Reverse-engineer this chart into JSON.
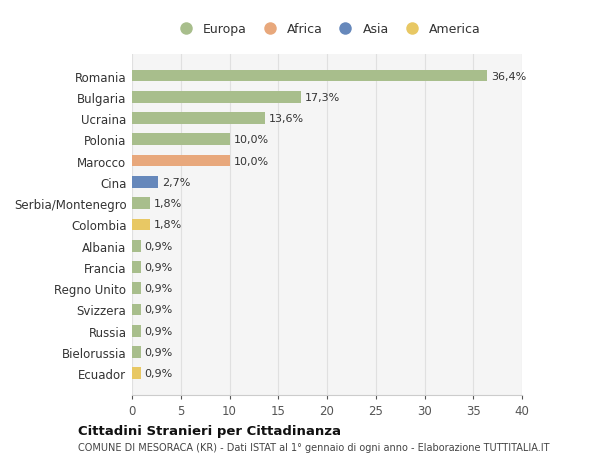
{
  "countries": [
    "Romania",
    "Bulgaria",
    "Ucraina",
    "Polonia",
    "Marocco",
    "Cina",
    "Serbia/Montenegro",
    "Colombia",
    "Albania",
    "Francia",
    "Regno Unito",
    "Svizzera",
    "Russia",
    "Bielorussia",
    "Ecuador"
  ],
  "values": [
    36.4,
    17.3,
    13.6,
    10.0,
    10.0,
    2.7,
    1.8,
    1.8,
    0.9,
    0.9,
    0.9,
    0.9,
    0.9,
    0.9,
    0.9
  ],
  "labels": [
    "36,4%",
    "17,3%",
    "13,6%",
    "10,0%",
    "10,0%",
    "2,7%",
    "1,8%",
    "1,8%",
    "0,9%",
    "0,9%",
    "0,9%",
    "0,9%",
    "0,9%",
    "0,9%",
    "0,9%"
  ],
  "continents": [
    "Europa",
    "Europa",
    "Europa",
    "Europa",
    "Africa",
    "Asia",
    "Europa",
    "America",
    "Europa",
    "Europa",
    "Europa",
    "Europa",
    "Europa",
    "Europa",
    "America"
  ],
  "colors": {
    "Europa": "#a8be8c",
    "Africa": "#e8a87c",
    "Asia": "#6688bb",
    "America": "#e8c864"
  },
  "legend_order": [
    "Europa",
    "Africa",
    "Asia",
    "America"
  ],
  "xlim": [
    0,
    40
  ],
  "xticks": [
    0,
    5,
    10,
    15,
    20,
    25,
    30,
    35,
    40
  ],
  "title": "Cittadini Stranieri per Cittadinanza",
  "subtitle": "COMUNE DI MESORACA (KR) - Dati ISTAT al 1° gennaio di ogni anno - Elaborazione TUTTITALIA.IT",
  "fig_bg_color": "#ffffff",
  "plot_bg_color": "#f5f5f5",
  "grid_color": "#e0e0e0",
  "bar_height": 0.55,
  "label_fontsize": 8.0,
  "ytick_fontsize": 8.5,
  "xtick_fontsize": 8.5
}
